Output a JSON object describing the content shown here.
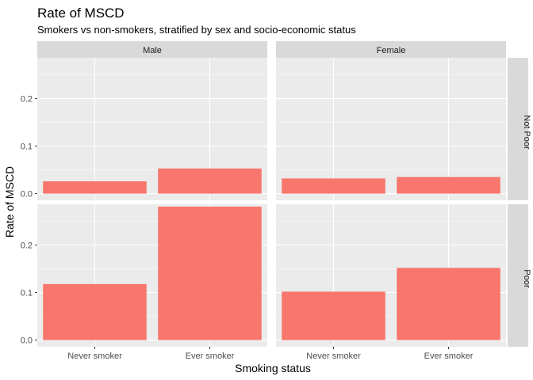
{
  "chart_data": {
    "type": "bar",
    "title": "Rate of MSCD",
    "subtitle": "Smokers vs non-smokers, stratified by sex and socio-economic status",
    "xlabel": "Smoking status",
    "ylabel": "Rate of MSCD",
    "categories": [
      "Never smoker",
      "Ever smoker"
    ],
    "column_facets": [
      "Male",
      "Female"
    ],
    "row_facets": [
      "Not Poor",
      "Poor"
    ],
    "y_ticks": [
      "0.0",
      "0.1",
      "0.2"
    ],
    "y_tick_values": [
      0.0,
      0.1,
      0.2
    ],
    "ylim": [
      -0.014,
      0.286
    ],
    "bar_color": "#F8766D",
    "panel_background": "#EBEBEB",
    "strip_background": "#D9D9D9",
    "grid": true,
    "panels": [
      {
        "row": "Not Poor",
        "col": "Male",
        "values": [
          0.026,
          0.053
        ]
      },
      {
        "row": "Not Poor",
        "col": "Female",
        "values": [
          0.032,
          0.035
        ]
      },
      {
        "row": "Poor",
        "col": "Male",
        "values": [
          0.118,
          0.281
        ]
      },
      {
        "row": "Poor",
        "col": "Female",
        "values": [
          0.102,
          0.152
        ]
      }
    ]
  }
}
